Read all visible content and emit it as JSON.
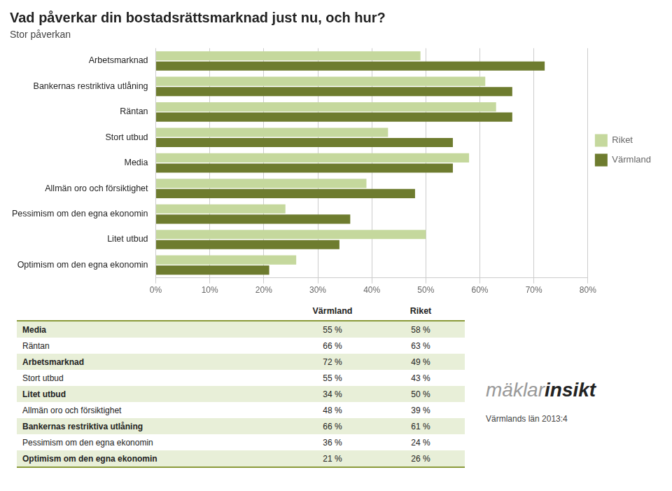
{
  "chart_data": {
    "type": "bar",
    "orientation": "horizontal",
    "title": "Vad påverkar din bostadsrättsmarknad just nu, och hur?",
    "subtitle": "Stor påverkan",
    "categories": [
      "Arbetsmarknad",
      "Bankernas restriktiva utlåning",
      "Räntan",
      "Stort utbud",
      "Media",
      "Allmän oro och försiktighet",
      "Pessimism om den egna ekonomin",
      "Litet utbud",
      "Optimism om den egna ekonomin"
    ],
    "series": [
      {
        "name": "Riket",
        "color": "#c5d89d",
        "values": [
          49,
          61,
          63,
          43,
          58,
          39,
          24,
          50,
          26
        ]
      },
      {
        "name": "Värmland",
        "color": "#6e7c2f",
        "values": [
          72,
          66,
          66,
          55,
          55,
          48,
          36,
          34,
          21
        ]
      }
    ],
    "xlim": [
      0,
      80
    ],
    "xticks": [
      {
        "value": 0,
        "label": "0%"
      },
      {
        "value": 10,
        "label": "10%"
      },
      {
        "value": 20,
        "label": "20%"
      },
      {
        "value": 30,
        "label": "30%"
      },
      {
        "value": 40,
        "label": "40%"
      },
      {
        "value": 50,
        "label": "50%"
      },
      {
        "value": 60,
        "label": "60%"
      },
      {
        "value": 70,
        "label": "70%"
      },
      {
        "value": 80,
        "label": "80%"
      }
    ],
    "grid": true,
    "legend": "right",
    "table": {
      "columns": [
        "Värmland",
        "Riket"
      ],
      "rows": [
        [
          "Media",
          "55 %",
          "58 %"
        ],
        [
          "Räntan",
          "66 %",
          "63 %"
        ],
        [
          "Arbetsmarknad",
          "72 %",
          "49 %"
        ],
        [
          "Stort utbud",
          "55 %",
          "43 %"
        ],
        [
          "Litet utbud",
          "34 %",
          "50 %"
        ],
        [
          "Allmän oro och försiktighet",
          "48 %",
          "39 %"
        ],
        [
          "Bankernas restriktiva utlåning",
          "66 %",
          "61 %"
        ],
        [
          "Pessimism om den egna ekonomin",
          "36 %",
          "24 %"
        ],
        [
          "Optimism om den egna ekonomin",
          "21 %",
          "26 %"
        ]
      ]
    },
    "logo": [
      "mäklar",
      "insikt"
    ],
    "footer": "Värmlands län 2013:4"
  }
}
